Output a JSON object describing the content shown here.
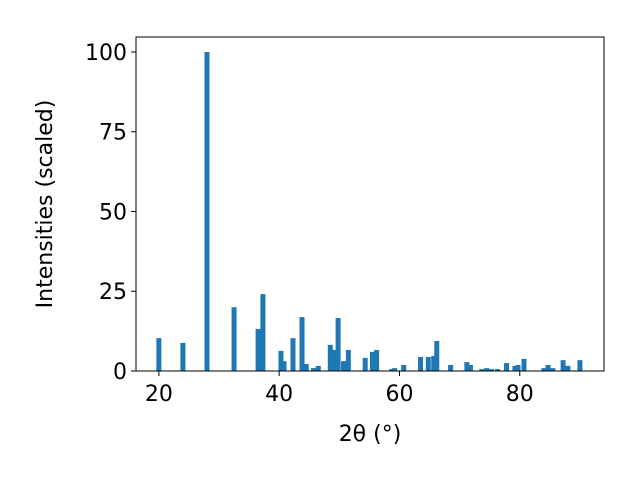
{
  "chart_data": {
    "type": "bar",
    "xlabel": "2θ (°)",
    "ylabel": "Intensities (scaled)",
    "x": [
      20.0,
      24.0,
      28.0,
      32.5,
      36.5,
      37.3,
      40.3,
      40.8,
      42.3,
      43.8,
      44.5,
      45.7,
      46.5,
      48.5,
      49.3,
      49.8,
      50.7,
      51.5,
      54.3,
      55.5,
      56.2,
      58.7,
      59.2,
      60.7,
      63.5,
      64.8,
      65.7,
      66.2,
      68.5,
      71.2,
      71.8,
      73.7,
      74.5,
      75.3,
      76.3,
      77.8,
      79.2,
      79.7,
      80.7,
      84.0,
      84.7,
      85.5,
      87.2,
      88.0,
      90.0
    ],
    "values": [
      10.3,
      8.8,
      100,
      20.0,
      13.2,
      24.1,
      6.3,
      3.1,
      10.3,
      16.9,
      2.2,
      0.9,
      1.6,
      8.2,
      6.6,
      16.6,
      3.1,
      6.6,
      4.1,
      6.0,
      6.6,
      0.6,
      0.9,
      1.9,
      4.4,
      4.4,
      4.7,
      9.4,
      1.9,
      2.8,
      1.9,
      0.6,
      0.9,
      0.6,
      0.6,
      2.5,
      1.6,
      1.9,
      3.8,
      0.9,
      1.9,
      0.9,
      3.4,
      1.6,
      3.4
    ],
    "color": "#1f77b4",
    "xlim": [
      16.2,
      94.0
    ],
    "xticks": [
      20,
      40,
      60,
      80
    ],
    "ylim": [
      0,
      104.7
    ],
    "yticks": [
      0,
      25,
      50,
      75,
      100
    ],
    "grid": false
  }
}
